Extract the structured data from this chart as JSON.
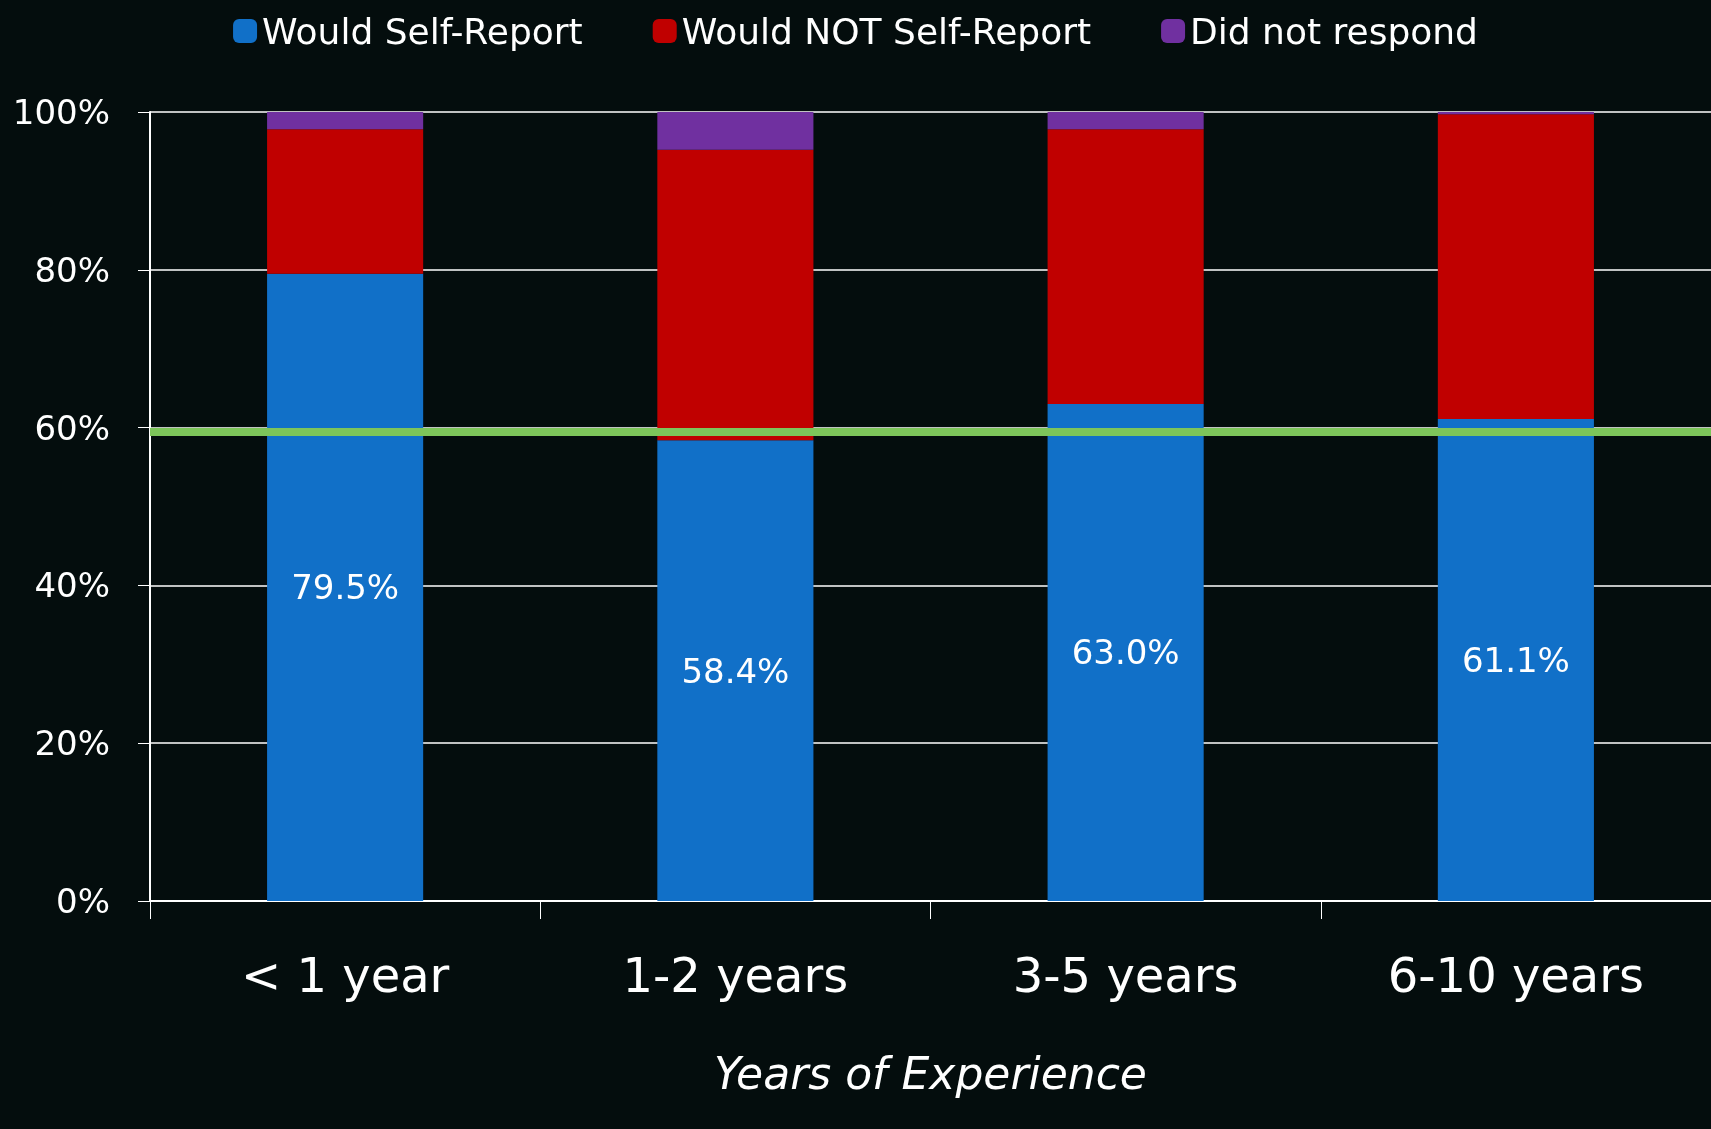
{
  "chart_data": {
    "type": "bar",
    "stacked": true,
    "xlabel": "Years of Experience",
    "categories": [
      "< 1 year",
      "1-2 years",
      "3-5 years",
      "6-10 years"
    ],
    "series": [
      {
        "name": "Would Self-Report",
        "color": "#1170c8",
        "values": [
          79.5,
          58.4,
          63.0,
          61.1
        ],
        "value_labels": [
          "79.5%",
          "58.4%",
          "63.0%",
          "61.1%"
        ]
      },
      {
        "name": "Would NOT Self-Report",
        "color": "#c00000",
        "values": [
          18.3,
          36.8,
          34.8,
          38.6
        ]
      },
      {
        "name": "Did not respond",
        "color": "#7030a0",
        "values": [
          2.2,
          4.8,
          2.2,
          0.3
        ]
      }
    ],
    "ylim": [
      0,
      100
    ],
    "yticks": [
      {
        "value": 0,
        "label": "0%"
      },
      {
        "value": 20,
        "label": "20%"
      },
      {
        "value": 40,
        "label": "40%"
      },
      {
        "value": 60,
        "label": "60%"
      },
      {
        "value": 80,
        "label": "80%"
      },
      {
        "value": 100,
        "label": "100%"
      }
    ],
    "ref_lines": [
      {
        "axis": "y",
        "value": 59.5,
        "color": "#7dc55a"
      }
    ],
    "grid": "y",
    "legend": "top"
  }
}
